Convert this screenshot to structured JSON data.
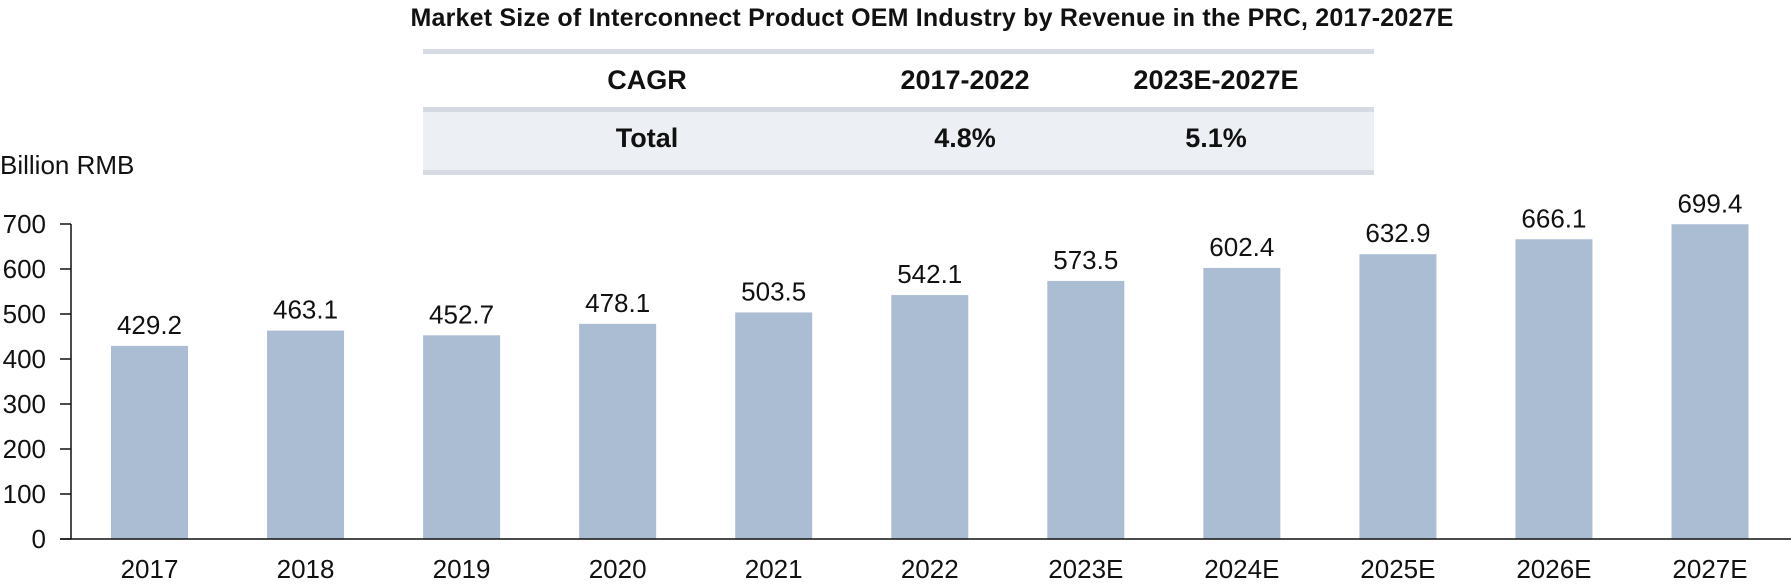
{
  "chart_data": {
    "type": "bar",
    "title": "Market Size of Interconnect Product OEM Industry by Revenue in the PRC, 2017-2027E",
    "xlabel": "",
    "ylabel": "Billion RMB",
    "categories": [
      "2017",
      "2018",
      "2019",
      "2020",
      "2021",
      "2022",
      "2023E",
      "2024E",
      "2025E",
      "2026E",
      "2027E"
    ],
    "values": [
      429.2,
      463.1,
      452.7,
      478.1,
      503.5,
      542.1,
      573.5,
      602.4,
      632.9,
      666.1,
      699.4
    ],
    "value_labels": [
      "429.2",
      "463.1",
      "452.7",
      "478.1",
      "503.5",
      "542.1",
      "573.5",
      "602.4",
      "632.9",
      "666.1",
      "699.4"
    ],
    "ylim": [
      0,
      700
    ],
    "yticks": [
      0,
      100,
      200,
      300,
      400,
      500,
      600,
      700
    ],
    "grid": false,
    "legend": "none",
    "bar_color": "#ABBDD3",
    "cagr_table": {
      "header": [
        "CAGR",
        "2017-2022",
        "2023E-2027E"
      ],
      "rows": [
        [
          "Total",
          "4.8%",
          "5.1%"
        ]
      ]
    }
  }
}
